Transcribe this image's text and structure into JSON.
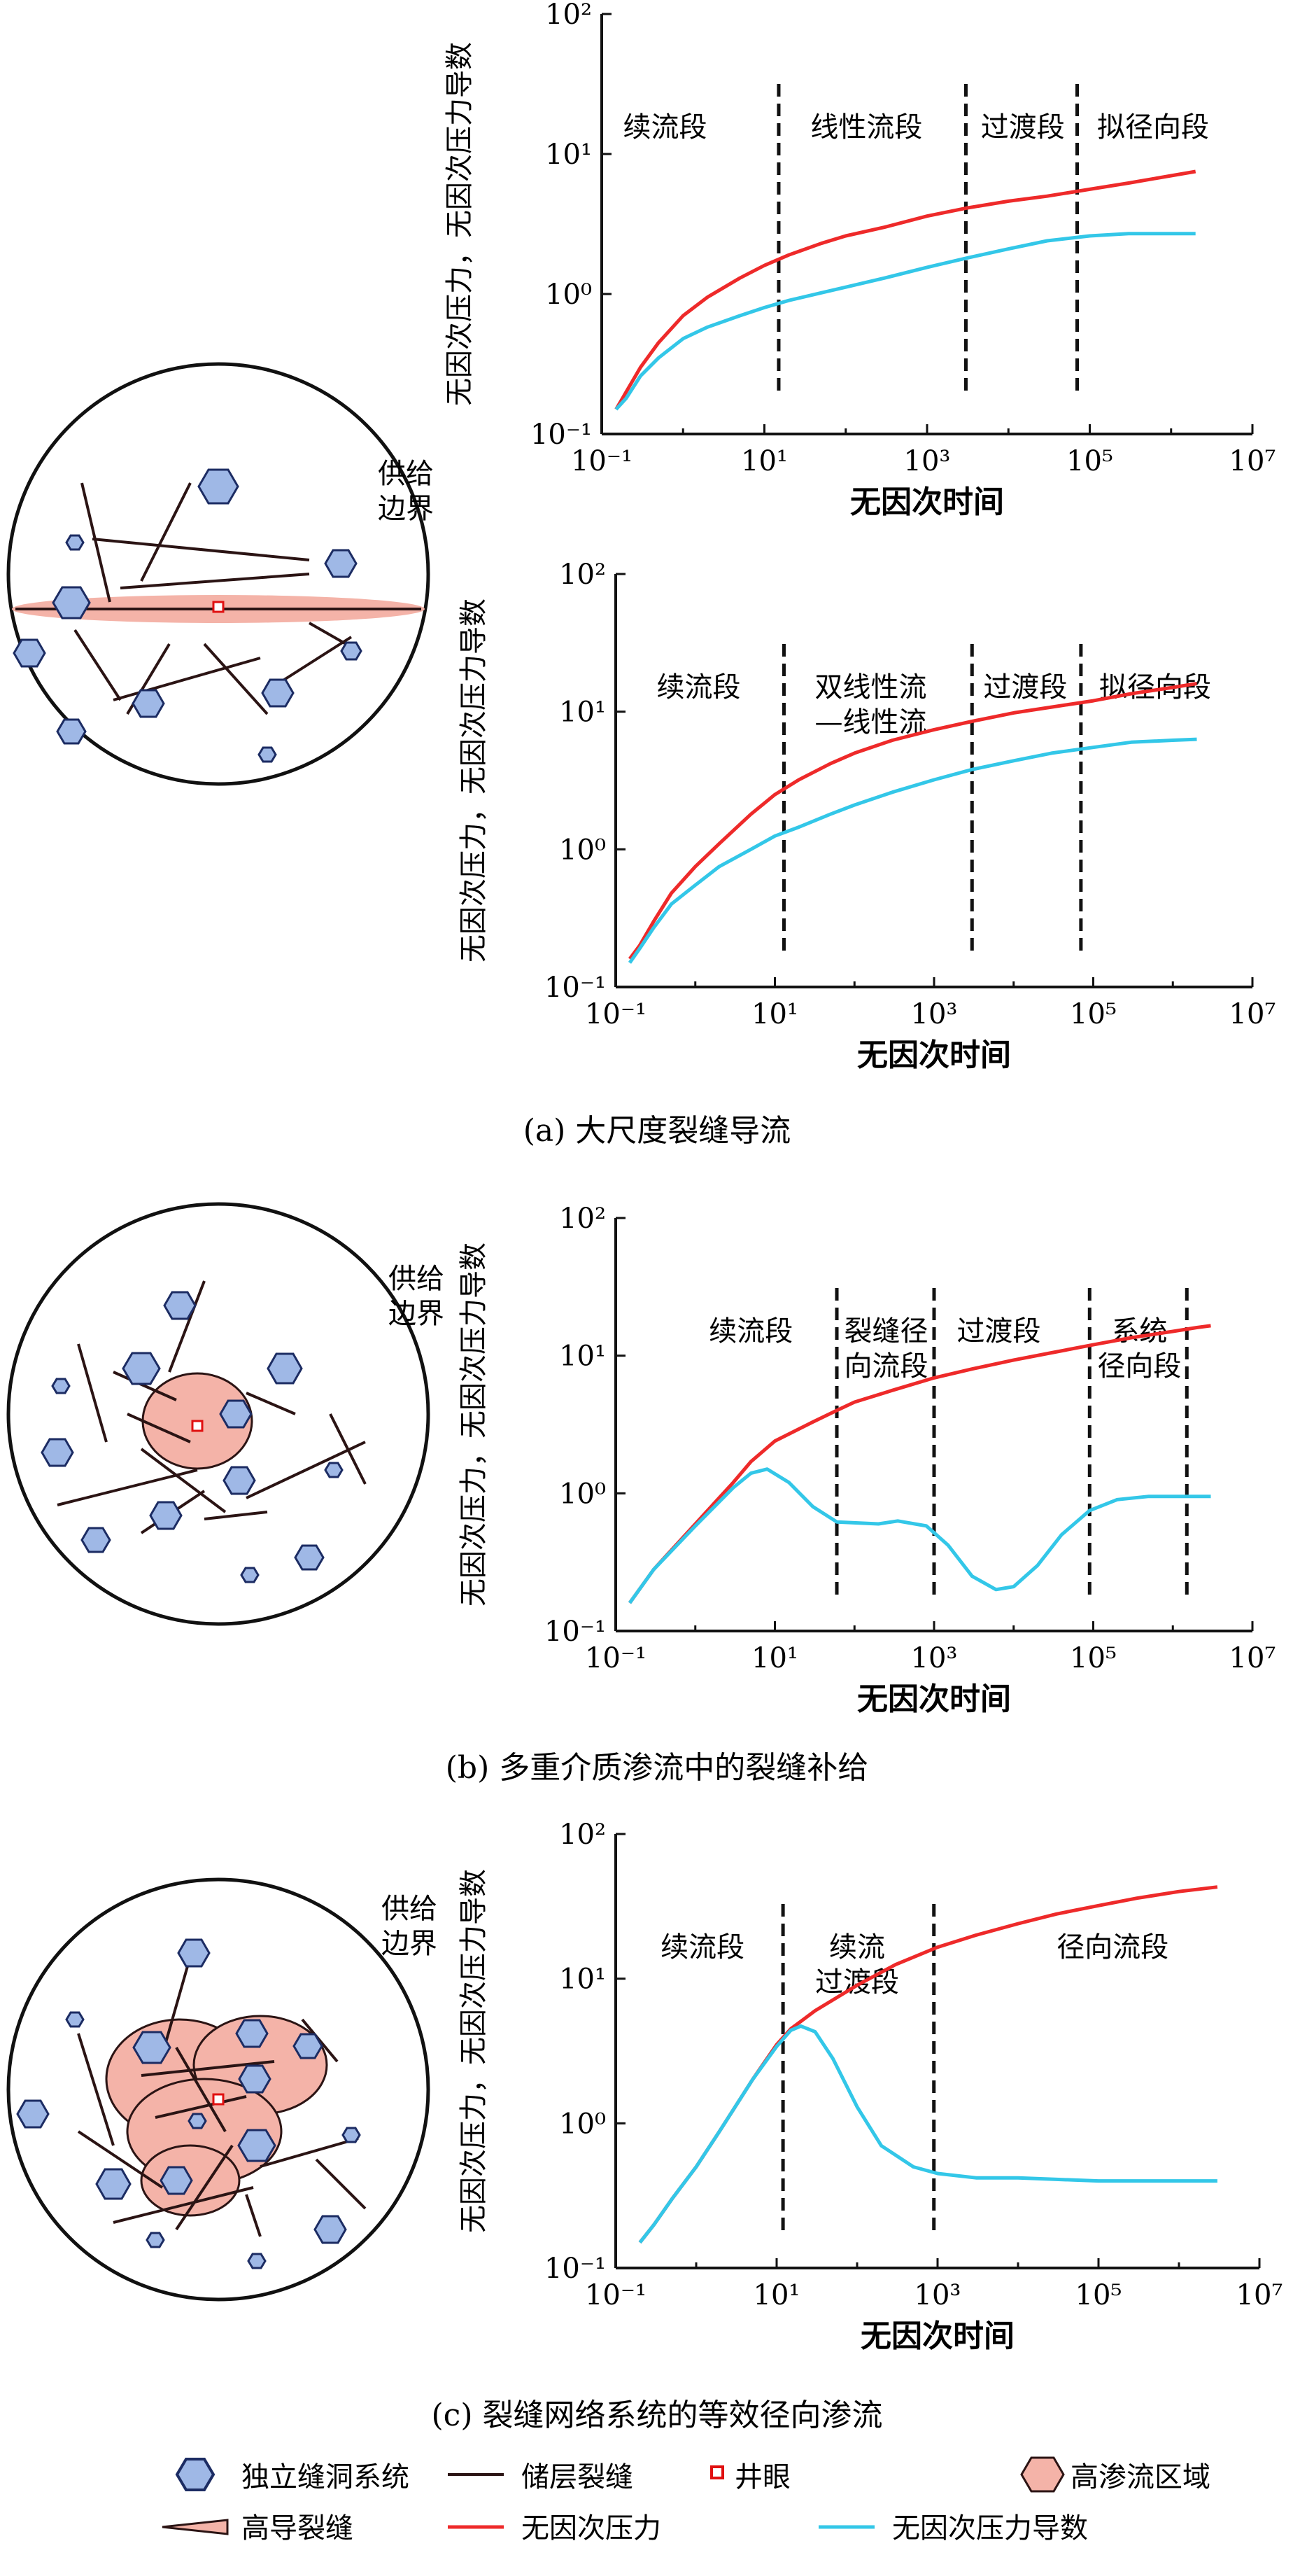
{
  "colors": {
    "pressure": "#ee2a2a",
    "derivative": "#33c7e8",
    "vug_fill": "#9fb8e6",
    "vug_stroke": "#1c2c63",
    "fracture": "#2b1414",
    "region_fill": "#f4b3a8",
    "well": "#e01010",
    "axis": "#111111"
  },
  "common": {
    "boundary_label_1": "供给",
    "boundary_label_2": "边界"
  },
  "panels": [
    {
      "id": "a",
      "caption": "(a) 大尺度裂缝导流",
      "schematic": "large-fracture",
      "charts": [
        {
          "xlabel": "无因次时间",
          "ylabel": "无因次压力，无因次压力导数",
          "xticks": [
            "10⁻¹",
            "10¹",
            "10³",
            "10⁵",
            "10⁷"
          ],
          "yticks": [
            "10²",
            "10¹",
            "10⁰",
            "10⁻¹"
          ],
          "boundaries": [
            15,
            3000,
            70000
          ],
          "segments": [
            {
              "label": [
                "续流段"
              ],
              "x": 0.6
            },
            {
              "label": [
                "线性流段"
              ],
              "x": 180
            },
            {
              "label": [
                "过渡段"
              ],
              "x": 15000
            },
            {
              "label": [
                "拟径向段"
              ],
              "x": 600000
            }
          ]
        },
        {
          "xlabel": "无因次时间",
          "ylabel": "无因次压力，无因次压力导数",
          "xticks": [
            "10⁻¹",
            "10¹",
            "10³",
            "10⁵",
            "10⁷"
          ],
          "yticks": [
            "10²",
            "10¹",
            "10⁰",
            "10⁻¹"
          ],
          "boundaries": [
            13,
            3000,
            70000
          ],
          "segments": [
            {
              "label": [
                "续流段"
              ],
              "x": 1.1
            },
            {
              "label": [
                "双线性流",
                "—线性流"
              ],
              "x": 160
            },
            {
              "label": [
                "过渡段"
              ],
              "x": 14000
            },
            {
              "label": [
                "拟径向段"
              ],
              "x": 600000
            }
          ]
        }
      ]
    },
    {
      "id": "b",
      "caption": "(b) 多重介质渗流中的裂缝补给",
      "schematic": "multi-media",
      "charts": [
        {
          "xlabel": "无因次时间",
          "ylabel": "无因次压力，无因次压力导数",
          "xticks": [
            "10⁻¹",
            "10¹",
            "10³",
            "10⁵",
            "10⁷"
          ],
          "yticks": [
            "10²",
            "10¹",
            "10⁰",
            "10⁻¹"
          ],
          "boundaries": [
            60,
            1000,
            90000,
            1500000
          ],
          "segments": [
            {
              "label": [
                "续流段"
              ],
              "x": 5
            },
            {
              "label": [
                "裂缝径",
                "向流段"
              ],
              "x": 250
            },
            {
              "label": [
                "过渡段"
              ],
              "x": 6500
            },
            {
              "label": [
                "系统",
                "径向段"
              ],
              "x": 380000
            }
          ]
        }
      ]
    },
    {
      "id": "c",
      "caption": "(c) 裂缝网络系统的等效径向渗流",
      "schematic": "network",
      "charts": [
        {
          "xlabel": "无因次时间",
          "ylabel": "无因次压力，无因次压力导数",
          "xticks": [
            "10⁻¹",
            "10¹",
            "10³",
            "10⁵",
            "10⁷"
          ],
          "yticks": [
            "10²",
            "10¹",
            "10⁰",
            "10⁻¹"
          ],
          "boundaries": [
            12,
            900
          ],
          "segments": [
            {
              "label": [
                "续流段"
              ],
              "x": 1.2
            },
            {
              "label": [
                "续流",
                "过渡段"
              ],
              "x": 100
            },
            {
              "label": [
                "径向流段"
              ],
              "x": 150000
            }
          ]
        }
      ]
    }
  ],
  "chart_data": [
    {
      "type": "line",
      "panel": "a-1",
      "xscale": "log",
      "yscale": "log",
      "xlim": [
        0.1,
        10000000
      ],
      "ylim": [
        0.1,
        100
      ],
      "xlabel": "无因次时间",
      "ylabel": "无因次压力，无因次压力导数",
      "series": [
        {
          "name": "无因次压力",
          "x": [
            0.15,
            0.2,
            0.3,
            0.5,
            1,
            2,
            5,
            10,
            20,
            50,
            100,
            300,
            1000,
            3000,
            10000,
            30000,
            100000,
            300000,
            1000000,
            2000000
          ],
          "values": [
            0.15,
            0.2,
            0.3,
            0.45,
            0.7,
            0.95,
            1.3,
            1.6,
            1.9,
            2.3,
            2.6,
            3.0,
            3.6,
            4.1,
            4.6,
            5.0,
            5.6,
            6.2,
            7.0,
            7.5
          ]
        },
        {
          "name": "无因次压力导数",
          "x": [
            0.15,
            0.2,
            0.3,
            0.5,
            1,
            2,
            5,
            10,
            20,
            50,
            100,
            300,
            1000,
            3000,
            10000,
            30000,
            100000,
            300000,
            1000000,
            2000000
          ],
          "values": [
            0.15,
            0.18,
            0.26,
            0.35,
            0.48,
            0.58,
            0.7,
            0.8,
            0.9,
            1.02,
            1.12,
            1.3,
            1.55,
            1.8,
            2.1,
            2.4,
            2.6,
            2.7,
            2.7,
            2.7
          ]
        }
      ]
    },
    {
      "type": "line",
      "panel": "a-2",
      "xscale": "log",
      "yscale": "log",
      "xlim": [
        0.1,
        10000000
      ],
      "ylim": [
        0.1,
        100
      ],
      "xlabel": "无因次时间",
      "ylabel": "无因次压力，无因次压力导数",
      "series": [
        {
          "name": "无因次压力",
          "x": [
            0.15,
            0.2,
            0.3,
            0.5,
            1,
            2,
            5,
            10,
            20,
            50,
            100,
            300,
            1000,
            3000,
            10000,
            30000,
            100000,
            300000,
            1000000,
            2000000
          ],
          "values": [
            0.16,
            0.2,
            0.3,
            0.48,
            0.75,
            1.1,
            1.8,
            2.5,
            3.2,
            4.2,
            5.0,
            6.2,
            7.4,
            8.5,
            9.8,
            10.8,
            12.0,
            13.5,
            15.0,
            16.0
          ]
        },
        {
          "name": "无因次压力导数",
          "x": [
            0.15,
            0.2,
            0.3,
            0.5,
            1,
            2,
            5,
            10,
            20,
            50,
            100,
            300,
            1000,
            3000,
            10000,
            30000,
            100000,
            300000,
            1000000,
            2000000
          ],
          "values": [
            0.15,
            0.19,
            0.27,
            0.4,
            0.55,
            0.75,
            1.0,
            1.25,
            1.45,
            1.8,
            2.1,
            2.6,
            3.2,
            3.8,
            4.4,
            5.0,
            5.5,
            6.0,
            6.2,
            6.3
          ]
        }
      ]
    },
    {
      "type": "line",
      "panel": "b",
      "xscale": "log",
      "yscale": "log",
      "xlim": [
        0.1,
        10000000
      ],
      "ylim": [
        0.1,
        100
      ],
      "xlabel": "无因次时间",
      "ylabel": "无因次压力，无因次压力导数",
      "series": [
        {
          "name": "无因次压力",
          "x": [
            0.15,
            0.3,
            1,
            3,
            5,
            10,
            30,
            60,
            100,
            300,
            1000,
            3000,
            10000,
            30000,
            100000,
            300000,
            1000000,
            2000000,
            3000000
          ],
          "values": [
            0.16,
            0.28,
            0.6,
            1.2,
            1.7,
            2.4,
            3.3,
            4.0,
            4.6,
            5.6,
            6.9,
            8.0,
            9.3,
            10.5,
            12.0,
            13.5,
            15.0,
            16.0,
            16.5
          ]
        },
        {
          "name": "无因次压力导数",
          "x": [
            0.15,
            0.3,
            1,
            3,
            5,
            8,
            15,
            30,
            60,
            200,
            350,
            800,
            1500,
            3000,
            6000,
            10000,
            20000,
            40000,
            90000,
            200000,
            500000,
            1000000,
            3000000
          ],
          "values": [
            0.16,
            0.28,
            0.58,
            1.1,
            1.4,
            1.5,
            1.2,
            0.8,
            0.62,
            0.6,
            0.63,
            0.58,
            0.42,
            0.25,
            0.2,
            0.21,
            0.3,
            0.5,
            0.75,
            0.9,
            0.95,
            0.95,
            0.95
          ]
        }
      ]
    },
    {
      "type": "line",
      "panel": "c",
      "xscale": "log",
      "yscale": "log",
      "xlim": [
        0.1,
        10000000
      ],
      "ylim": [
        0.1,
        100
      ],
      "xlabel": "无因次时间",
      "ylabel": "无因次压力，无因次压力导数",
      "series": [
        {
          "name": "无因次压力",
          "x": [
            0.2,
            0.3,
            0.5,
            1,
            2,
            5,
            10,
            15,
            30,
            100,
            300,
            1000,
            3000,
            10000,
            30000,
            100000,
            300000,
            1000000,
            3000000
          ],
          "values": [
            0.15,
            0.2,
            0.3,
            0.5,
            0.9,
            2.0,
            3.5,
            4.5,
            6.0,
            9.0,
            12.5,
            16.5,
            20,
            24,
            28,
            32,
            36,
            40,
            43
          ]
        },
        {
          "name": "无因次压力导数",
          "x": [
            0.2,
            0.3,
            0.5,
            1,
            2,
            5,
            10,
            15,
            20,
            30,
            50,
            100,
            200,
            500,
            1000,
            3000,
            10000,
            30000,
            100000,
            300000,
            1000000,
            3000000
          ],
          "values": [
            0.15,
            0.2,
            0.3,
            0.5,
            0.9,
            2.0,
            3.4,
            4.4,
            4.7,
            4.3,
            2.8,
            1.3,
            0.7,
            0.5,
            0.45,
            0.42,
            0.42,
            0.41,
            0.4,
            0.4,
            0.4,
            0.4
          ]
        }
      ]
    }
  ],
  "legend": {
    "vug": "独立缝洞系统",
    "fracture": "储层裂缝",
    "well": "井眼",
    "region": "高渗流区域",
    "high_frac": "高导裂缝",
    "pressure": "无因次压力",
    "derivative": "无因次压力导数"
  }
}
